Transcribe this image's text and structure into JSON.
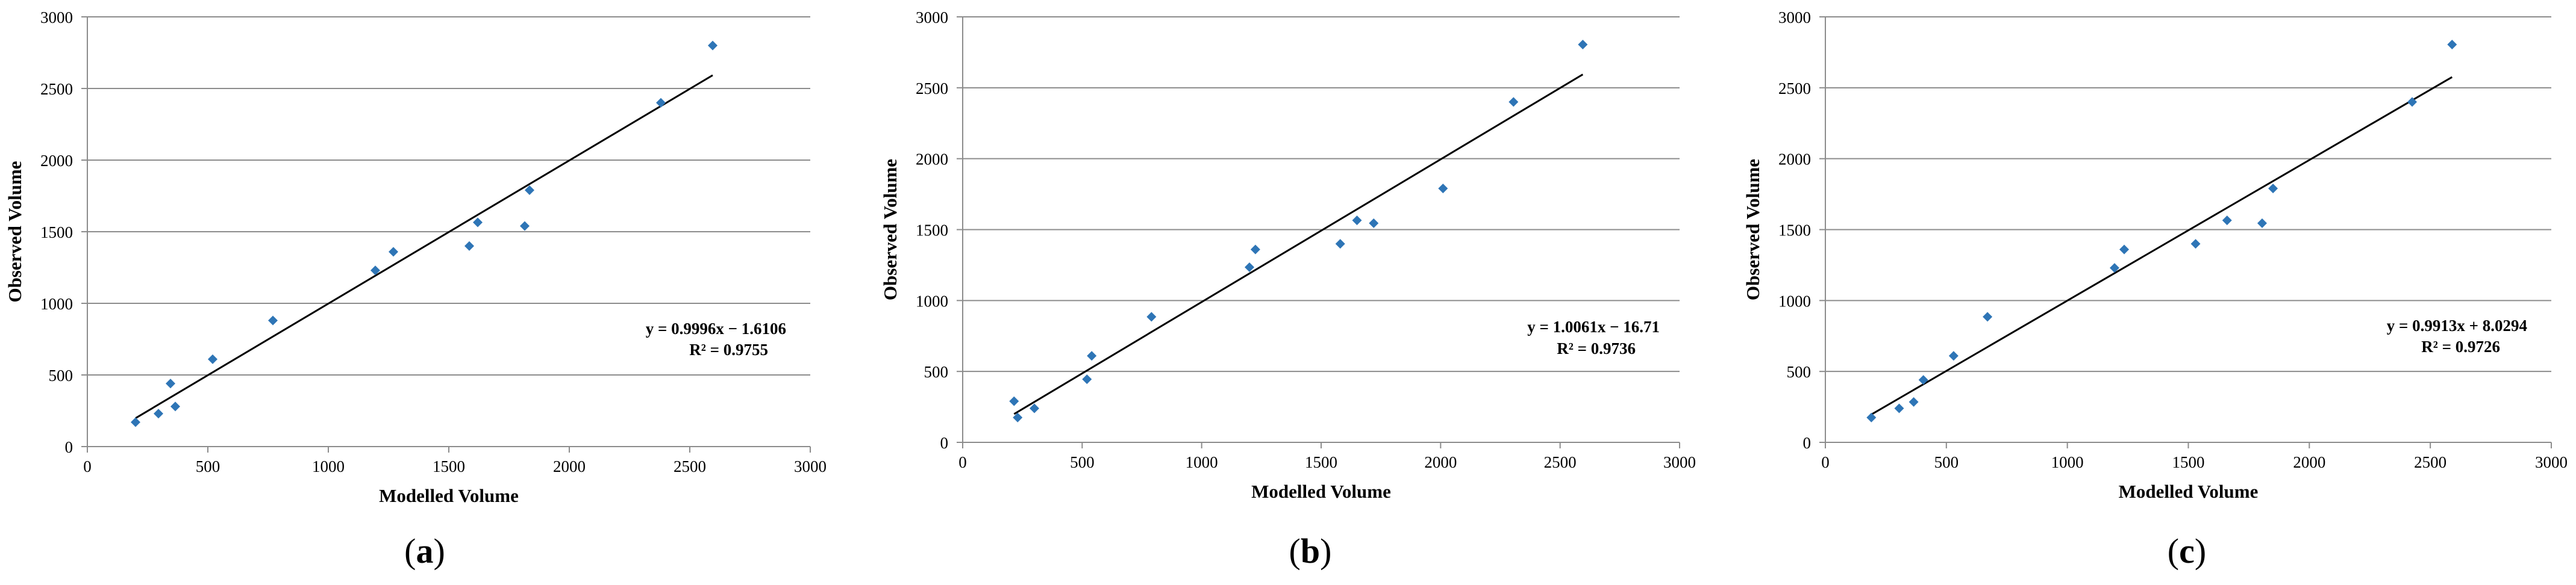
{
  "chart_data": [
    {
      "type": "scatter",
      "panel_label": "(a)",
      "xlabel": "Modelled Volume",
      "ylabel": "Observed Volume",
      "xlim": [
        0,
        3000
      ],
      "ylim": [
        0,
        3000
      ],
      "xticks": [
        "0",
        "500",
        "1000",
        "1500",
        "2000",
        "2500",
        "3000"
      ],
      "yticks": [
        "0",
        "500",
        "1000",
        "1500",
        "2000",
        "2500",
        "3000"
      ],
      "grid": "horizontal",
      "marker_color": "#2e75b6",
      "line_color": "#000000",
      "points": [
        {
          "x": 200,
          "y": 170
        },
        {
          "x": 295,
          "y": 230
        },
        {
          "x": 345,
          "y": 440
        },
        {
          "x": 365,
          "y": 280
        },
        {
          "x": 520,
          "y": 610
        },
        {
          "x": 770,
          "y": 880
        },
        {
          "x": 1195,
          "y": 1230
        },
        {
          "x": 1270,
          "y": 1360
        },
        {
          "x": 1585,
          "y": 1400
        },
        {
          "x": 1620,
          "y": 1565
        },
        {
          "x": 1815,
          "y": 1540
        },
        {
          "x": 1835,
          "y": 1790
        },
        {
          "x": 2380,
          "y": 2400
        },
        {
          "x": 2595,
          "y": 2800
        }
      ],
      "trendline": {
        "slope": 0.9996,
        "intercept": -1.6106,
        "x_range": [
          200,
          2595
        ]
      },
      "equation": "y = 0.9996x − 1.6106",
      "r2": "R² = 0.9755"
    },
    {
      "type": "scatter",
      "panel_label": "(b)",
      "xlabel": "Modelled Volume",
      "ylabel": "Observed Volume",
      "xlim": [
        0,
        3000
      ],
      "ylim": [
        0,
        3000
      ],
      "xticks": [
        "0",
        "500",
        "1000",
        "1500",
        "2000",
        "2500",
        "3000"
      ],
      "yticks": [
        "0",
        "500",
        "1000",
        "1500",
        "2000",
        "2500",
        "3000"
      ],
      "grid": "horizontal",
      "marker_color": "#2e75b6",
      "line_color": "#000000",
      "points": [
        {
          "x": 215,
          "y": 290
        },
        {
          "x": 230,
          "y": 175
        },
        {
          "x": 300,
          "y": 240
        },
        {
          "x": 520,
          "y": 445
        },
        {
          "x": 540,
          "y": 610
        },
        {
          "x": 790,
          "y": 885
        },
        {
          "x": 1200,
          "y": 1235
        },
        {
          "x": 1225,
          "y": 1360
        },
        {
          "x": 1580,
          "y": 1400
        },
        {
          "x": 1650,
          "y": 1565
        },
        {
          "x": 1720,
          "y": 1545
        },
        {
          "x": 2010,
          "y": 1790
        },
        {
          "x": 2305,
          "y": 2400
        },
        {
          "x": 2595,
          "y": 2805
        }
      ],
      "trendline": {
        "slope": 1.0061,
        "intercept": -16.71,
        "x_range": [
          215,
          2595
        ]
      },
      "equation": "y = 1.0061x − 16.71",
      "r2": "R² = 0.9736"
    },
    {
      "type": "scatter",
      "panel_label": "(c)",
      "xlabel": "Modelled Volume",
      "ylabel": "Observed Volume",
      "xlim": [
        0,
        3000
      ],
      "ylim": [
        0,
        3000
      ],
      "xticks": [
        "0",
        "500",
        "1000",
        "1500",
        "2000",
        "2500",
        "3000"
      ],
      "yticks": [
        "0",
        "500",
        "1000",
        "1500",
        "2000",
        "2500",
        "3000"
      ],
      "grid": "horizontal",
      "marker_color": "#2e75b6",
      "line_color": "#000000",
      "points": [
        {
          "x": 190,
          "y": 175
        },
        {
          "x": 305,
          "y": 240
        },
        {
          "x": 365,
          "y": 285
        },
        {
          "x": 405,
          "y": 440
        },
        {
          "x": 530,
          "y": 610
        },
        {
          "x": 670,
          "y": 885
        },
        {
          "x": 1195,
          "y": 1230
        },
        {
          "x": 1235,
          "y": 1360
        },
        {
          "x": 1530,
          "y": 1400
        },
        {
          "x": 1660,
          "y": 1565
        },
        {
          "x": 1805,
          "y": 1545
        },
        {
          "x": 1850,
          "y": 1790
        },
        {
          "x": 2425,
          "y": 2400
        },
        {
          "x": 2590,
          "y": 2805
        }
      ],
      "trendline": {
        "slope": 0.9913,
        "intercept": 8.0294,
        "x_range": [
          190,
          2590
        ]
      },
      "equation": "y = 0.9913x + 8.0294",
      "r2": "R² = 0.9726"
    }
  ]
}
